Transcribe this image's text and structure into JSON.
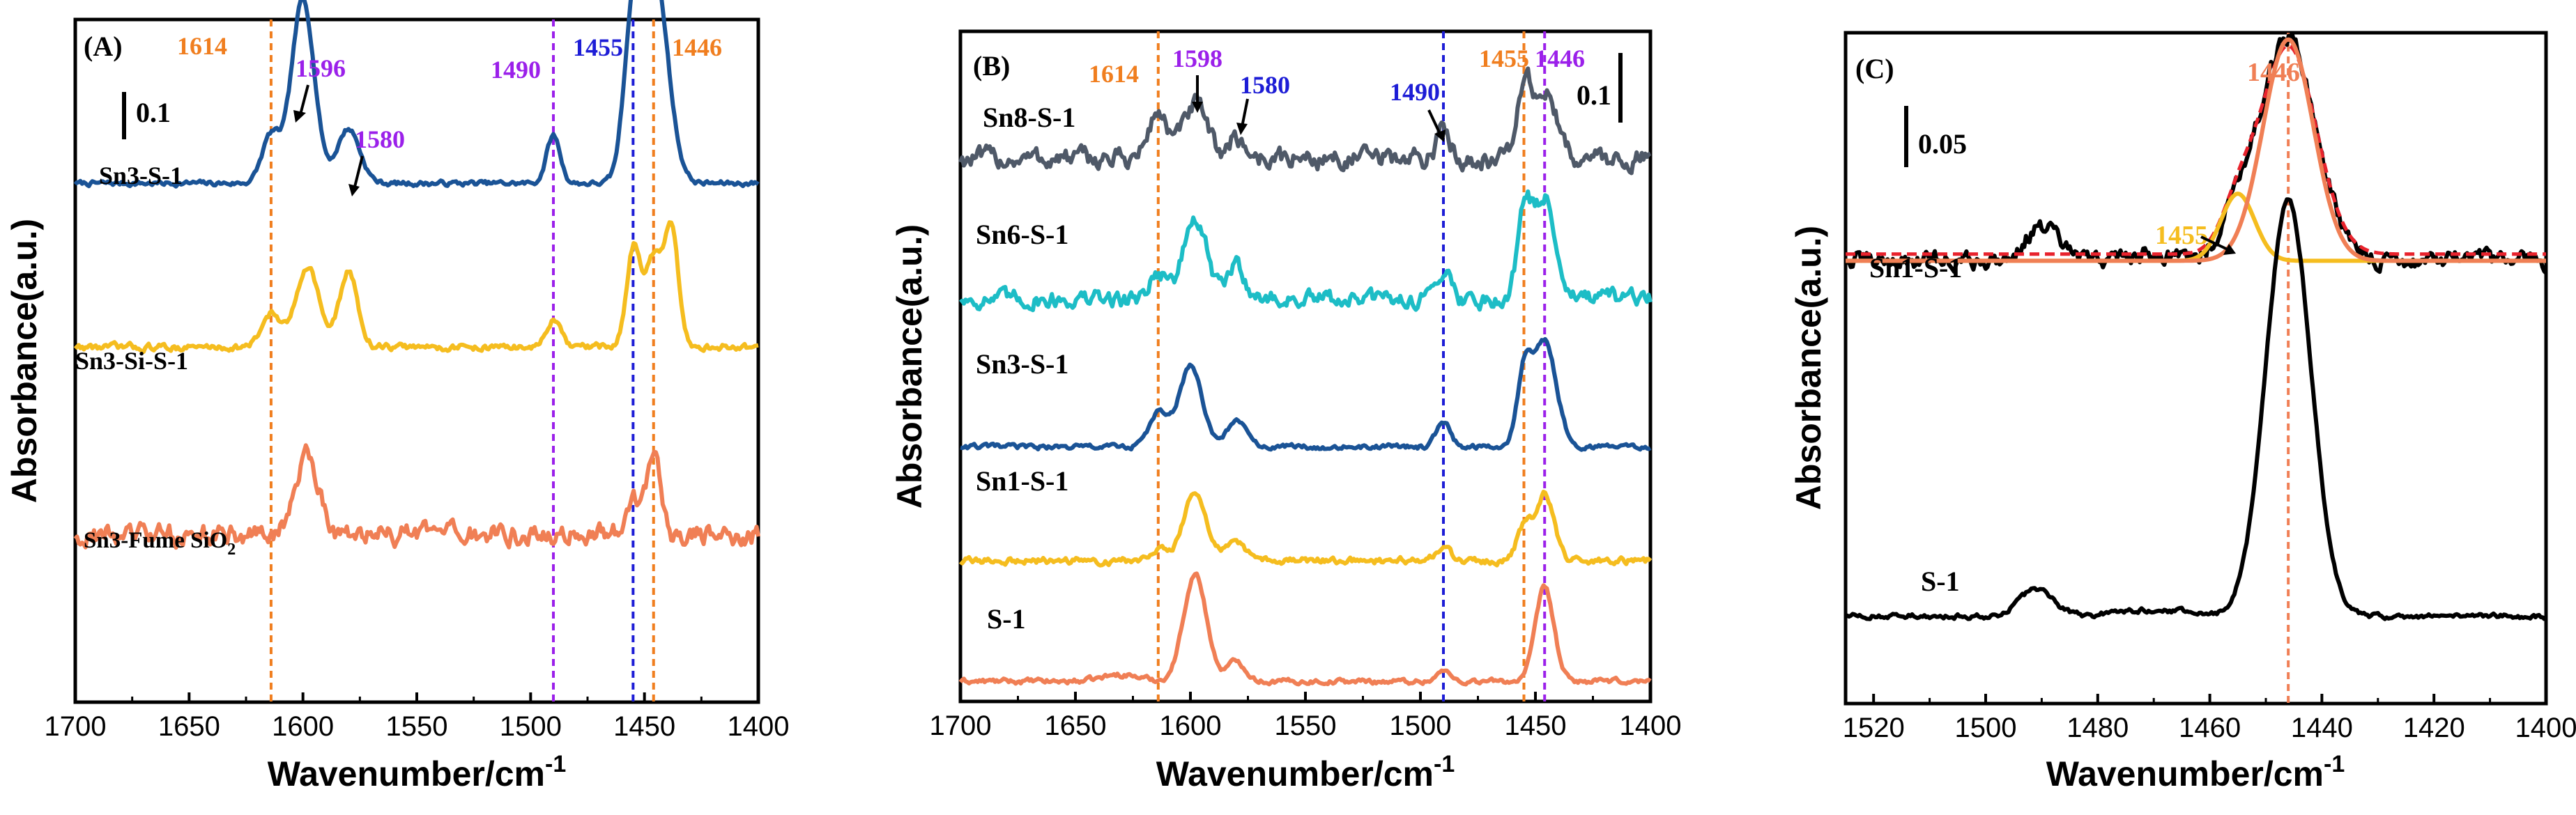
{
  "chart_data": [
    {
      "type": "line",
      "panel_label": "(A)",
      "xlabel": "Wavenumber/cm",
      "xlabel_sup": "-1",
      "ylabel": "Absorbance(a.u.)",
      "xlim": [
        1700,
        1400
      ],
      "xticks": [
        1700,
        1650,
        1600,
        1550,
        1500,
        1450,
        1400
      ],
      "scale_bar": "0.1",
      "series": [
        {
          "name": "Sn3-S-1",
          "label": "Sn3-S-1",
          "color": "#1a5396",
          "base": 0.76,
          "noise": 0.0015,
          "peaks": [
            [
              1614,
              0.07,
              4
            ],
            [
              1600,
              0.27,
              5
            ],
            [
              1580,
              0.08,
              5
            ],
            [
              1490,
              0.07,
              3
            ],
            [
              1455,
              0.2,
              4
            ],
            [
              1446,
              0.32,
              6
            ]
          ]
        },
        {
          "name": "Sn3-Si-S-1",
          "label": "Sn3-Si-S-1",
          "color": "#f5bd1f",
          "base": 0.52,
          "noise": 0.002,
          "peaks": [
            [
              1614,
              0.05,
              4
            ],
            [
              1598,
              0.12,
              5
            ],
            [
              1580,
              0.11,
              4
            ],
            [
              1490,
              0.04,
              3
            ],
            [
              1455,
              0.14,
              3
            ],
            [
              1446,
              0.13,
              4
            ],
            [
              1438,
              0.16,
              3
            ]
          ]
        },
        {
          "name": "Sn3-Fume SiO2",
          "label": "Sn3-Fume SiO",
          "label_sub": "2",
          "color": "#f07f55",
          "base": 0.245,
          "noise": 0.006,
          "peaks": [
            [
              1598,
              0.12,
              5
            ],
            [
              1455,
              0.05,
              3
            ],
            [
              1446,
              0.13,
              3
            ]
          ]
        }
      ],
      "annotations": [
        {
          "text": "1614",
          "x": 1614,
          "color": "#f07e1f"
        },
        {
          "text": "1596",
          "x": 1596,
          "color": "#9b20ea"
        },
        {
          "text": "1580",
          "x": 1580,
          "color": "#9b20ea"
        },
        {
          "text": "1490",
          "x": 1490,
          "color": "#9b20ea"
        },
        {
          "text": "1455",
          "x": 1455,
          "color": "#1d1dd6"
        },
        {
          "text": "1446",
          "x": 1446,
          "color": "#f07e1f"
        }
      ],
      "reference_lines": [
        {
          "x": 1614,
          "color": "#f07e1f"
        },
        {
          "x": 1490,
          "color": "#9b20ea"
        },
        {
          "x": 1455,
          "color": "#1d1dd6"
        },
        {
          "x": 1446,
          "color": "#f07e1f"
        }
      ]
    },
    {
      "type": "line",
      "panel_label": "(B)",
      "xlabel": "Wavenumber/cm",
      "xlabel_sup": "-1",
      "ylabel": "Absorbance(a.u.)",
      "xlim": [
        1700,
        1400
      ],
      "xticks": [
        1700,
        1650,
        1600,
        1550,
        1500,
        1450,
        1400
      ],
      "scale_bar": "0.1",
      "series": [
        {
          "name": "Sn8-S-1",
          "label": "Sn8-S-1",
          "color": "#4f5968",
          "base": 0.81,
          "noise": 0.006,
          "peaks": [
            [
              1614,
              0.07,
              4
            ],
            [
              1598,
              0.08,
              5
            ],
            [
              1580,
              0.03,
              4
            ],
            [
              1490,
              0.04,
              3
            ],
            [
              1455,
              0.1,
              3
            ],
            [
              1446,
              0.1,
              5
            ]
          ]
        },
        {
          "name": "Sn6-S-1",
          "label": "Sn6-S-1",
          "color": "#1dbdc6",
          "base": 0.6,
          "noise": 0.005,
          "peaks": [
            [
              1614,
              0.04,
              4
            ],
            [
              1598,
              0.12,
              5
            ],
            [
              1580,
              0.05,
              4
            ],
            [
              1490,
              0.05,
              3
            ],
            [
              1455,
              0.12,
              3
            ],
            [
              1446,
              0.15,
              5
            ]
          ]
        },
        {
          "name": "Sn3-S-1",
          "label": "Sn3-S-1",
          "color": "#1a5396",
          "base": 0.38,
          "noise": 0.0015,
          "peaks": [
            [
              1614,
              0.05,
              4
            ],
            [
              1600,
              0.12,
              5
            ],
            [
              1580,
              0.04,
              4
            ],
            [
              1490,
              0.04,
              3
            ],
            [
              1455,
              0.1,
              3
            ],
            [
              1446,
              0.16,
              5
            ]
          ]
        },
        {
          "name": "Sn1-S-1",
          "label": "Sn1-S-1",
          "color": "#f5bd1f",
          "base": 0.21,
          "noise": 0.002,
          "peaks": [
            [
              1614,
              0.02,
              4
            ],
            [
              1598,
              0.1,
              5
            ],
            [
              1580,
              0.03,
              4
            ],
            [
              1490,
              0.02,
              3
            ],
            [
              1455,
              0.05,
              3
            ],
            [
              1446,
              0.1,
              4
            ]
          ]
        },
        {
          "name": "S-1",
          "label": "S-1",
          "color": "#f07f55",
          "base": 0.03,
          "noise": 0.0015,
          "peaks": [
            [
              1630,
              0.01,
              8
            ],
            [
              1598,
              0.16,
              5
            ],
            [
              1580,
              0.03,
              4
            ],
            [
              1490,
              0.015,
              3
            ],
            [
              1446,
              0.14,
              4
            ]
          ]
        }
      ],
      "annotations": [
        {
          "text": "1614",
          "x": 1614,
          "color": "#f07e1f"
        },
        {
          "text": "1598",
          "x": 1598,
          "color": "#9b20ea"
        },
        {
          "text": "1580",
          "x": 1580,
          "color": "#1d1dd6"
        },
        {
          "text": "1490",
          "x": 1490,
          "color": "#1d1dd6"
        },
        {
          "text": "1455",
          "x": 1455,
          "color": "#f07e1f"
        },
        {
          "text": "1446",
          "x": 1446,
          "color": "#9b20ea"
        }
      ],
      "reference_lines": [
        {
          "x": 1614,
          "color": "#f07e1f"
        },
        {
          "x": 1490,
          "color": "#1d1dd6"
        },
        {
          "x": 1455,
          "color": "#f07e1f"
        },
        {
          "x": 1446,
          "color": "#9b20ea"
        }
      ]
    },
    {
      "type": "line",
      "panel_label": "(C)",
      "xlabel": "Wavenumber/cm",
      "xlabel_sup": "-1",
      "ylabel": "Absorbance(a.u.)",
      "xlim": [
        1525,
        1400
      ],
      "xticks": [
        1520,
        1500,
        1480,
        1460,
        1440,
        1420,
        1400
      ],
      "scale_bar": "0.05",
      "series": [
        {
          "name": "Sn1-S-1",
          "label": "Sn1-S-1",
          "color": "#000000",
          "base": 0.66,
          "noise": 0.005,
          "peaks": [
            [
              1490,
              0.05,
              3
            ],
            [
              1470,
              0.01,
              5
            ],
            [
              1455,
              0.06,
              3
            ],
            [
              1446,
              0.33,
              5
            ]
          ]
        },
        {
          "name": "Sn1-S-1 fit",
          "label": "",
          "color": "#e8232d",
          "dashed": true,
          "base": 0.67,
          "noise": 0,
          "peaks": [
            [
              1455,
              0.06,
              3
            ],
            [
              1446,
              0.31,
              5
            ]
          ]
        },
        {
          "name": "1455 component",
          "label": "",
          "color": "#f5bd1f",
          "base": 0.66,
          "noise": 0,
          "peaks": [
            [
              1455,
              0.1,
              3
            ]
          ]
        },
        {
          "name": "1446 component",
          "label": "",
          "color": "#f07f55",
          "base": 0.66,
          "noise": 0,
          "peaks": [
            [
              1446,
              0.33,
              4.5
            ]
          ]
        },
        {
          "name": "S-1",
          "label": "S-1",
          "color": "#000000",
          "base": 0.13,
          "noise": 0.0015,
          "peaks": [
            [
              1491,
              0.04,
              3
            ],
            [
              1470,
              0.01,
              6
            ],
            [
              1446,
              0.62,
              4
            ]
          ]
        }
      ],
      "annotations": [
        {
          "text": "1446",
          "x": 1446,
          "color": "#f07f55"
        },
        {
          "text": "1455",
          "x": 1455,
          "color": "#f5bd1f"
        }
      ],
      "reference_lines": [
        {
          "x": 1446,
          "color": "#f07f55"
        }
      ]
    }
  ]
}
